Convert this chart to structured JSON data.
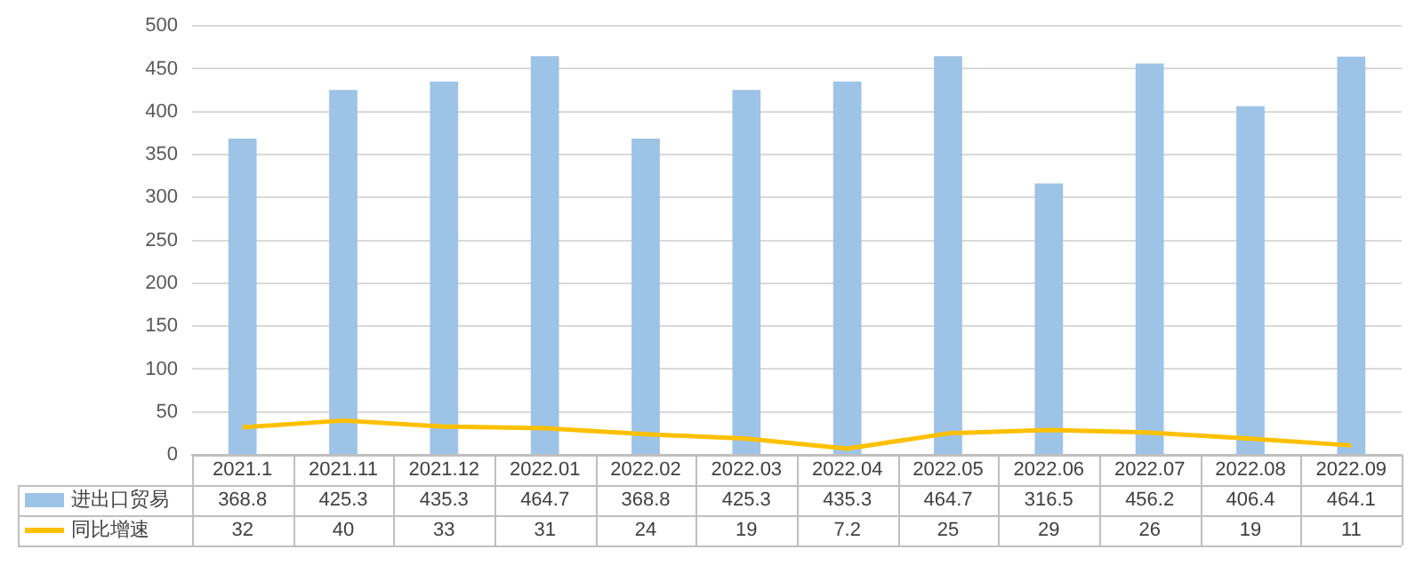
{
  "chart_data": {
    "type": "bar",
    "categories": [
      "2021.1",
      "2021.11",
      "2021.12",
      "2022.01",
      "2022.02",
      "2022.03",
      "2022.04",
      "2022.05",
      "2022.06",
      "2022.07",
      "2022.08",
      "2022.09"
    ],
    "series": [
      {
        "name": "进出口贸易",
        "color": "#9dc3e6",
        "values": [
          368.8,
          425.3,
          435.3,
          464.7,
          368.8,
          425.3,
          435.3,
          464.7,
          316.5,
          456.2,
          406.4,
          464.1
        ]
      },
      {
        "name": "同比增速",
        "type": "line",
        "color": "#ffc000",
        "values": [
          32,
          40,
          33,
          31,
          24,
          19,
          7.2,
          25,
          29,
          26,
          19,
          11
        ]
      }
    ],
    "ylim": [
      0,
      500
    ],
    "yticks": [
      0,
      50,
      100,
      150,
      200,
      250,
      300,
      350,
      400,
      450,
      500
    ],
    "grid": "y",
    "legend": "bottom",
    "data_labels": true,
    "marker": "none",
    "line_style": "solid"
  }
}
